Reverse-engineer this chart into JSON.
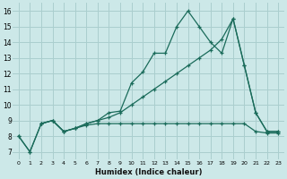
{
  "xlabel": "Humidex (Indice chaleur)",
  "bg_color": "#cce8e8",
  "grid_color": "#aacece",
  "line_color": "#1a6b5a",
  "xlim": [
    -0.5,
    23.5
  ],
  "ylim": [
    6.5,
    16.5
  ],
  "xticks": [
    0,
    1,
    2,
    3,
    4,
    5,
    6,
    7,
    8,
    9,
    10,
    11,
    12,
    13,
    14,
    15,
    16,
    17,
    18,
    19,
    20,
    21,
    22,
    23
  ],
  "yticks": [
    7,
    8,
    9,
    10,
    11,
    12,
    13,
    14,
    15,
    16
  ],
  "series1_x": [
    0,
    1,
    2,
    3,
    4,
    5,
    6,
    7,
    8,
    9,
    10,
    11,
    12,
    13,
    14,
    15,
    16,
    17,
    18,
    19,
    20,
    21,
    22,
    23
  ],
  "series1_y": [
    8.0,
    7.0,
    8.8,
    9.0,
    8.3,
    8.5,
    8.8,
    9.0,
    9.5,
    9.6,
    11.4,
    12.1,
    13.3,
    13.3,
    15.0,
    16.0,
    15.0,
    14.0,
    13.3,
    15.5,
    12.5,
    9.5,
    8.3,
    8.3
  ],
  "series2_x": [
    2,
    3,
    4,
    5,
    6,
    7,
    8,
    9,
    10,
    11,
    12,
    13,
    14,
    15,
    16,
    17,
    18,
    19,
    20,
    21,
    22,
    23
  ],
  "series2_y": [
    8.8,
    9.0,
    8.3,
    8.5,
    8.8,
    9.0,
    9.2,
    9.5,
    10.0,
    10.5,
    11.0,
    11.5,
    12.0,
    12.5,
    13.0,
    13.5,
    14.2,
    15.5,
    12.5,
    9.5,
    8.3,
    8.3
  ],
  "series3_x": [
    0,
    1,
    2,
    3,
    4,
    5,
    6,
    7,
    8,
    9,
    10,
    11,
    12,
    13,
    14,
    15,
    16,
    17,
    18,
    19,
    20,
    21,
    22,
    23
  ],
  "series3_y": [
    8.0,
    7.0,
    8.8,
    9.0,
    8.3,
    8.5,
    8.7,
    8.8,
    8.8,
    8.8,
    8.8,
    8.8,
    8.8,
    8.8,
    8.8,
    8.8,
    8.8,
    8.8,
    8.8,
    8.8,
    8.8,
    8.3,
    8.2,
    8.2
  ]
}
